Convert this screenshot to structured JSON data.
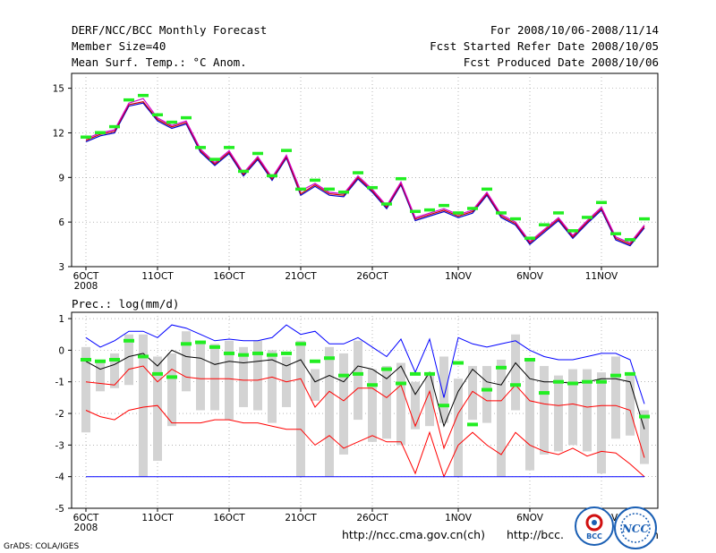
{
  "header": {
    "title": "DERF/NCC/BCC Monthly Forecast",
    "member_size": "Member Size=40",
    "variable": "Mean Surf. Temp.: °C Anom.",
    "period": "For 2008/10/06-2008/11/14",
    "refer_date": "Fcst Started Refer Date 2008/10/05",
    "produced_date": "Fcst Produced Date 2008/10/06"
  },
  "footer": {
    "url1": "http://ncc.cma.gov.cn(ch)",
    "url2": "http://bcc.",
    "url2_tail": "n",
    "grads": "GrADS: COLA/IGES",
    "logo1_label": "BCC",
    "logo2_label": "NCC"
  },
  "colors": {
    "ensemble_a": "#0000cc",
    "ensemble_b": "#cc0000",
    "ensemble_c": "#d000d0",
    "marker": "#22ee22",
    "box": "#d3d3d3",
    "mean": "#000000",
    "upper": "#0000ff",
    "pct": "#ff0000",
    "grid": "#888888"
  },
  "chart_data": [
    {
      "type": "line",
      "title": "Mean Surf. Temp.: °C Anom.",
      "xlabel": "",
      "ylabel": "",
      "ylim": [
        3,
        16
      ],
      "yticks": [
        3,
        6,
        9,
        12,
        15
      ],
      "x_tick_labels": [
        "6OCT",
        "11OCT",
        "16OCT",
        "21OCT",
        "26OCT",
        "1NOV",
        "6NOV",
        "11NOV"
      ],
      "x_tick_days": [
        1,
        6,
        11,
        16,
        21,
        27,
        32,
        37
      ],
      "year_label": "2008",
      "days": [
        1,
        2,
        3,
        4,
        5,
        6,
        7,
        8,
        9,
        10,
        11,
        12,
        13,
        14,
        15,
        16,
        17,
        18,
        19,
        20,
        21,
        22,
        23,
        24,
        25,
        26,
        27,
        28,
        29,
        30,
        31,
        32,
        33,
        34,
        35,
        36,
        37,
        38,
        39,
        40
      ],
      "series": [
        {
          "name": "member_a",
          "values": [
            11.4,
            11.8,
            12.0,
            13.8,
            14.0,
            12.8,
            12.3,
            12.6,
            10.7,
            9.8,
            10.6,
            9.1,
            10.2,
            8.8,
            10.3,
            7.8,
            8.4,
            7.8,
            7.7,
            8.9,
            8.0,
            6.9,
            8.5,
            6.1,
            6.4,
            6.7,
            6.3,
            6.6,
            7.8,
            6.3,
            5.8,
            4.5,
            5.3,
            6.1,
            4.9,
            5.9,
            6.8,
            4.8,
            4.4,
            5.6
          ]
        },
        {
          "name": "member_b",
          "values": [
            11.5,
            11.9,
            12.1,
            13.9,
            14.1,
            12.9,
            12.4,
            12.7,
            10.8,
            9.9,
            10.7,
            9.2,
            10.3,
            8.9,
            10.4,
            7.9,
            8.5,
            7.9,
            7.8,
            9.0,
            8.1,
            7.0,
            8.6,
            6.2,
            6.5,
            6.8,
            6.4,
            6.7,
            7.9,
            6.4,
            5.9,
            4.6,
            5.4,
            6.2,
            5.0,
            6.0,
            6.9,
            4.9,
            4.5,
            5.7
          ]
        },
        {
          "name": "member_c",
          "values": [
            11.6,
            12.0,
            12.2,
            14.0,
            14.3,
            13.0,
            12.5,
            12.8,
            10.9,
            10.0,
            10.8,
            9.3,
            10.4,
            9.0,
            10.5,
            8.1,
            8.6,
            8.0,
            7.9,
            9.1,
            8.2,
            7.1,
            8.7,
            6.3,
            6.6,
            6.9,
            6.5,
            6.8,
            8.0,
            6.5,
            6.0,
            4.7,
            5.5,
            6.3,
            5.1,
            6.1,
            7.0,
            5.0,
            4.6,
            5.8
          ]
        },
        {
          "name": "marker",
          "values": [
            11.7,
            12.0,
            12.4,
            14.2,
            14.5,
            13.2,
            12.7,
            13.0,
            11.0,
            10.2,
            11.0,
            9.4,
            10.6,
            9.1,
            10.8,
            8.2,
            8.8,
            8.2,
            8.0,
            9.3,
            8.3,
            7.2,
            8.9,
            6.7,
            6.8,
            7.1,
            6.6,
            6.9,
            8.2,
            6.6,
            6.2,
            4.9,
            5.8,
            6.6,
            5.4,
            6.3,
            7.3,
            5.2,
            4.8,
            6.2
          ]
        }
      ]
    },
    {
      "type": "boxplot",
      "title": "Prec.: log(mm/d)",
      "xlabel": "",
      "ylabel": "",
      "ylim": [
        -5,
        1.2
      ],
      "yticks": [
        -5,
        -4,
        -3,
        -2,
        -1,
        0,
        1
      ],
      "x_tick_labels": [
        "6OCT",
        "11OCT",
        "16OCT",
        "21OCT",
        "26OCT",
        "1NOV",
        "6NOV",
        "11NOV"
      ],
      "x_tick_days": [
        1,
        6,
        11,
        16,
        21,
        27,
        32,
        37
      ],
      "year_label": "2008",
      "days": [
        1,
        2,
        3,
        4,
        5,
        6,
        7,
        8,
        9,
        10,
        11,
        12,
        13,
        14,
        15,
        16,
        17,
        18,
        19,
        20,
        21,
        22,
        23,
        24,
        25,
        26,
        27,
        28,
        29,
        30,
        31,
        32,
        33,
        34,
        35,
        36,
        37,
        38,
        39,
        40
      ],
      "box_low": [
        -2.6,
        -1.3,
        -1.2,
        -1.1,
        -4.0,
        -3.5,
        -2.4,
        -1.3,
        -1.9,
        -1.9,
        -2.2,
        -1.8,
        -1.9,
        -2.3,
        -1.8,
        -4.0,
        -1.6,
        -4.0,
        -3.3,
        -2.2,
        -2.9,
        -2.8,
        -3.0,
        -2.5,
        -2.4,
        -2.3,
        -4.0,
        -2.2,
        -2.3,
        -4.0,
        -1.9,
        -3.8,
        -3.3,
        -3.2,
        -3.0,
        -3.2,
        -3.9,
        -2.8,
        -2.7,
        -3.6
      ],
      "box_high": [
        0.1,
        -0.3,
        -0.1,
        0.5,
        0.5,
        -0.2,
        -0.1,
        0.6,
        0.2,
        0.2,
        0.3,
        0.1,
        0.3,
        0.0,
        -0.2,
        0.3,
        -0.6,
        0.1,
        -0.1,
        0.3,
        -0.6,
        -0.5,
        -0.4,
        -1.0,
        -0.8,
        -0.2,
        -0.9,
        -0.5,
        -0.5,
        -0.3,
        0.5,
        -0.3,
        -0.5,
        -0.8,
        -0.6,
        -0.6,
        -0.7,
        -0.2,
        -0.8,
        -1.9
      ],
      "series": [
        {
          "name": "upper",
          "values": [
            0.4,
            0.1,
            0.3,
            0.6,
            0.6,
            0.4,
            0.8,
            0.7,
            0.5,
            0.3,
            0.35,
            0.3,
            0.3,
            0.4,
            0.8,
            0.5,
            0.6,
            0.2,
            0.2,
            0.4,
            0.1,
            -0.2,
            0.35,
            -0.7,
            0.35,
            -1.5,
            0.4,
            0.2,
            0.1,
            0.2,
            0.3,
            0.0,
            -0.2,
            -0.3,
            -0.3,
            -0.2,
            -0.1,
            -0.1,
            -0.3,
            -1.7
          ]
        },
        {
          "name": "mean",
          "values": [
            -0.35,
            -0.6,
            -0.45,
            -0.2,
            -0.1,
            -0.5,
            0.0,
            -0.2,
            -0.25,
            -0.45,
            -0.35,
            -0.4,
            -0.35,
            -0.3,
            -0.5,
            -0.3,
            -1.0,
            -0.8,
            -1.0,
            -0.5,
            -0.6,
            -0.9,
            -0.5,
            -1.4,
            -0.7,
            -2.4,
            -1.3,
            -0.6,
            -1.0,
            -1.1,
            -0.4,
            -0.9,
            -1.0,
            -1.0,
            -1.05,
            -1.0,
            -0.9,
            -0.9,
            -1.0,
            -2.5
          ]
        },
        {
          "name": "pct_high",
          "values": [
            -1.0,
            -1.05,
            -1.1,
            -0.6,
            -0.5,
            -1.0,
            -0.6,
            -0.85,
            -0.9,
            -0.9,
            -0.9,
            -0.95,
            -0.95,
            -0.85,
            -1.0,
            -0.9,
            -1.8,
            -1.3,
            -1.6,
            -1.2,
            -1.2,
            -1.5,
            -1.1,
            -2.4,
            -1.3,
            -3.1,
            -2.0,
            -1.3,
            -1.6,
            -1.6,
            -1.1,
            -1.6,
            -1.7,
            -1.75,
            -1.7,
            -1.8,
            -1.75,
            -1.75,
            -1.9,
            -3.4
          ]
        },
        {
          "name": "pct_low",
          "values": [
            -1.9,
            -2.1,
            -2.2,
            -1.9,
            -1.8,
            -1.75,
            -2.3,
            -2.3,
            -2.3,
            -2.2,
            -2.2,
            -2.3,
            -2.3,
            -2.4,
            -2.5,
            -2.5,
            -3.0,
            -2.7,
            -3.1,
            -2.9,
            -2.7,
            -2.9,
            -2.9,
            -3.9,
            -2.6,
            -4.0,
            -3.0,
            -2.6,
            -3.0,
            -3.3,
            -2.6,
            -3.0,
            -3.2,
            -3.3,
            -3.1,
            -3.35,
            -3.2,
            -3.25,
            -3.6,
            -4.0
          ]
        },
        {
          "name": "baseline",
          "values": [
            -4,
            -4,
            -4,
            -4,
            -4,
            -4,
            -4,
            -4,
            -4,
            -4,
            -4,
            -4,
            -4,
            -4,
            -4,
            -4,
            -4,
            -4,
            -4,
            -4,
            -4,
            -4,
            -4,
            -4,
            -4,
            -4,
            -4,
            -4,
            -4,
            -4,
            -4,
            -4,
            -4,
            -4,
            -4,
            -4,
            -4,
            -4,
            -4,
            -4
          ]
        },
        {
          "name": "marker",
          "values": [
            -0.3,
            -0.35,
            -0.3,
            0.3,
            -0.2,
            -0.75,
            -0.85,
            0.2,
            0.25,
            0.1,
            -0.1,
            -0.15,
            -0.1,
            -0.15,
            -0.1,
            0.2,
            -0.35,
            -0.25,
            -0.8,
            -0.75,
            -1.1,
            -0.6,
            -1.05,
            -0.75,
            -0.75,
            -1.75,
            -0.4,
            -2.35,
            -1.25,
            -0.55,
            -1.1,
            -0.3,
            -1.35,
            -1.0,
            -1.05,
            -1.0,
            -1.0,
            -0.8,
            -0.75,
            -2.1
          ]
        }
      ]
    }
  ]
}
